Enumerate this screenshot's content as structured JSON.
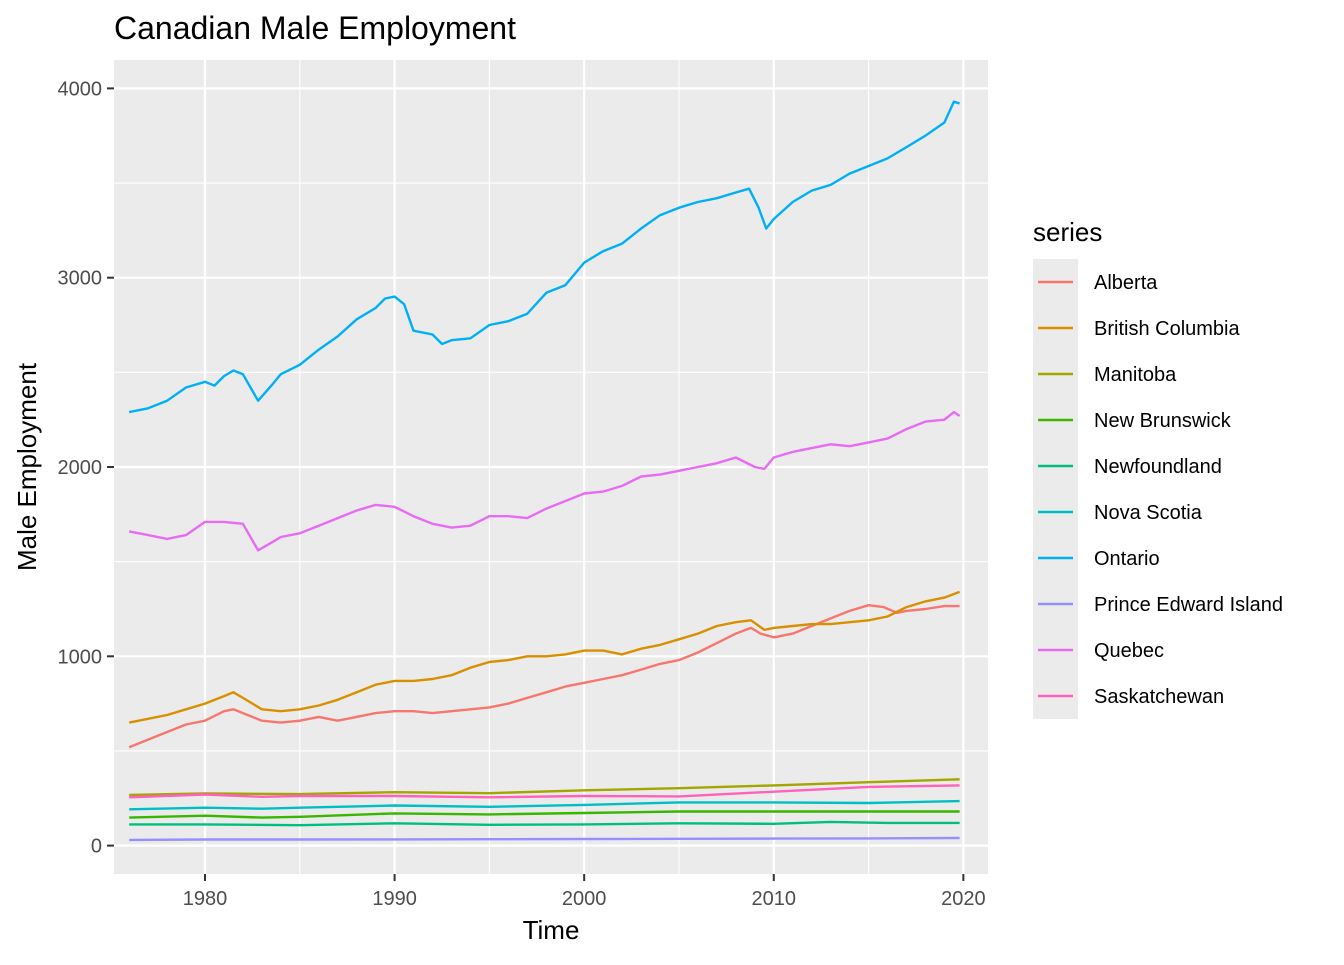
{
  "chart_data": {
    "type": "line",
    "title": "Canadian Male Employment",
    "xlabel": "Time",
    "ylabel": "Male Employment",
    "xlim": [
      1975.2,
      2021.3
    ],
    "ylim": [
      -150,
      4150
    ],
    "x_ticks": [
      1980,
      1990,
      2000,
      2010,
      2020
    ],
    "x_tick_labels": [
      "1980",
      "1990",
      "2000",
      "2010",
      "2020"
    ],
    "y_ticks": [
      0,
      1000,
      2000,
      3000,
      4000
    ],
    "y_tick_labels": [
      "0",
      "1000",
      "2000",
      "3000",
      "4000"
    ],
    "grid": true,
    "background": "#ebebeb",
    "legend": {
      "title": "series",
      "position": "right"
    },
    "series": [
      {
        "name": "Alberta",
        "color": "#F8766D",
        "points": [
          [
            1976,
            520
          ],
          [
            1977,
            560
          ],
          [
            1978,
            600
          ],
          [
            1979,
            640
          ],
          [
            1980,
            660
          ],
          [
            1981,
            710
          ],
          [
            1981.5,
            720
          ],
          [
            1982,
            700
          ],
          [
            1983,
            660
          ],
          [
            1984,
            650
          ],
          [
            1985,
            660
          ],
          [
            1986,
            680
          ],
          [
            1987,
            660
          ],
          [
            1988,
            680
          ],
          [
            1989,
            700
          ],
          [
            1990,
            710
          ],
          [
            1991,
            710
          ],
          [
            1992,
            700
          ],
          [
            1993,
            710
          ],
          [
            1994,
            720
          ],
          [
            1995,
            730
          ],
          [
            1996,
            750
          ],
          [
            1997,
            780
          ],
          [
            1998,
            810
          ],
          [
            1999,
            840
          ],
          [
            2000,
            860
          ],
          [
            2001,
            880
          ],
          [
            2002,
            900
          ],
          [
            2003,
            930
          ],
          [
            2004,
            960
          ],
          [
            2005,
            980
          ],
          [
            2006,
            1020
          ],
          [
            2007,
            1070
          ],
          [
            2008,
            1120
          ],
          [
            2008.8,
            1150
          ],
          [
            2009.3,
            1120
          ],
          [
            2010,
            1100
          ],
          [
            2011,
            1120
          ],
          [
            2012,
            1160
          ],
          [
            2013,
            1200
          ],
          [
            2014,
            1240
          ],
          [
            2015,
            1270
          ],
          [
            2015.8,
            1260
          ],
          [
            2016.5,
            1230
          ],
          [
            2017,
            1240
          ],
          [
            2018,
            1250
          ],
          [
            2019,
            1265
          ],
          [
            2019.8,
            1265
          ]
        ]
      },
      {
        "name": "British Columbia",
        "color": "#D89000",
        "points": [
          [
            1976,
            650
          ],
          [
            1977,
            670
          ],
          [
            1978,
            690
          ],
          [
            1979,
            720
          ],
          [
            1980,
            750
          ],
          [
            1981,
            790
          ],
          [
            1981.5,
            810
          ],
          [
            1982,
            780
          ],
          [
            1983,
            720
          ],
          [
            1984,
            710
          ],
          [
            1985,
            720
          ],
          [
            1986,
            740
          ],
          [
            1987,
            770
          ],
          [
            1988,
            810
          ],
          [
            1989,
            850
          ],
          [
            1990,
            870
          ],
          [
            1991,
            870
          ],
          [
            1992,
            880
          ],
          [
            1993,
            900
          ],
          [
            1994,
            940
          ],
          [
            1995,
            970
          ],
          [
            1996,
            980
          ],
          [
            1997,
            1000
          ],
          [
            1998,
            1000
          ],
          [
            1999,
            1010
          ],
          [
            2000,
            1030
          ],
          [
            2001,
            1030
          ],
          [
            2002,
            1010
          ],
          [
            2003,
            1040
          ],
          [
            2004,
            1060
          ],
          [
            2005,
            1090
          ],
          [
            2006,
            1120
          ],
          [
            2007,
            1160
          ],
          [
            2008,
            1180
          ],
          [
            2008.8,
            1190
          ],
          [
            2009.5,
            1140
          ],
          [
            2010,
            1150
          ],
          [
            2011,
            1160
          ],
          [
            2012,
            1170
          ],
          [
            2013,
            1170
          ],
          [
            2014,
            1180
          ],
          [
            2015,
            1190
          ],
          [
            2016,
            1210
          ],
          [
            2017,
            1260
          ],
          [
            2018,
            1290
          ],
          [
            2019,
            1310
          ],
          [
            2019.8,
            1340
          ]
        ]
      },
      {
        "name": "Manitoba",
        "color": "#A3A500",
        "points": [
          [
            1976,
            268
          ],
          [
            1980,
            275
          ],
          [
            1985,
            272
          ],
          [
            1990,
            282
          ],
          [
            1995,
            277
          ],
          [
            2000,
            292
          ],
          [
            2005,
            303
          ],
          [
            2010,
            318
          ],
          [
            2015,
            335
          ],
          [
            2019.8,
            350
          ]
        ]
      },
      {
        "name": "New Brunswick",
        "color": "#39B600",
        "points": [
          [
            1976,
            148
          ],
          [
            1980,
            158
          ],
          [
            1983,
            148
          ],
          [
            1985,
            152
          ],
          [
            1990,
            170
          ],
          [
            1995,
            165
          ],
          [
            2000,
            172
          ],
          [
            2005,
            180
          ],
          [
            2010,
            180
          ],
          [
            2015,
            180
          ],
          [
            2019.8,
            180
          ]
        ]
      },
      {
        "name": "Newfoundland",
        "color": "#00BF7D",
        "points": [
          [
            1976,
            112
          ],
          [
            1980,
            112
          ],
          [
            1985,
            108
          ],
          [
            1990,
            118
          ],
          [
            1995,
            110
          ],
          [
            2000,
            112
          ],
          [
            2005,
            118
          ],
          [
            2010,
            115
          ],
          [
            2013,
            125
          ],
          [
            2016,
            120
          ],
          [
            2019.8,
            120
          ]
        ]
      },
      {
        "name": "Nova Scotia",
        "color": "#00BFC4",
        "points": [
          [
            1976,
            192
          ],
          [
            1980,
            200
          ],
          [
            1983,
            195
          ],
          [
            1985,
            200
          ],
          [
            1990,
            212
          ],
          [
            1995,
            205
          ],
          [
            2000,
            215
          ],
          [
            2005,
            228
          ],
          [
            2010,
            228
          ],
          [
            2015,
            225
          ],
          [
            2019.8,
            235
          ]
        ]
      },
      {
        "name": "Ontario",
        "color": "#00B0F6",
        "points": [
          [
            1976,
            2290
          ],
          [
            1977,
            2310
          ],
          [
            1978,
            2350
          ],
          [
            1979,
            2420
          ],
          [
            1980,
            2450
          ],
          [
            1980.5,
            2430
          ],
          [
            1981,
            2480
          ],
          [
            1981.5,
            2510
          ],
          [
            1982,
            2490
          ],
          [
            1982.8,
            2350
          ],
          [
            1983.5,
            2430
          ],
          [
            1984,
            2490
          ],
          [
            1985,
            2540
          ],
          [
            1986,
            2620
          ],
          [
            1987,
            2690
          ],
          [
            1988,
            2780
          ],
          [
            1989,
            2840
          ],
          [
            1989.5,
            2890
          ],
          [
            1990,
            2900
          ],
          [
            1990.5,
            2860
          ],
          [
            1991,
            2720
          ],
          [
            1992,
            2700
          ],
          [
            1992.5,
            2650
          ],
          [
            1993,
            2670
          ],
          [
            1994,
            2680
          ],
          [
            1995,
            2750
          ],
          [
            1996,
            2770
          ],
          [
            1997,
            2810
          ],
          [
            1998,
            2920
          ],
          [
            1999,
            2960
          ],
          [
            2000,
            3080
          ],
          [
            2001,
            3140
          ],
          [
            2002,
            3180
          ],
          [
            2003,
            3260
          ],
          [
            2004,
            3330
          ],
          [
            2005,
            3370
          ],
          [
            2006,
            3400
          ],
          [
            2007,
            3420
          ],
          [
            2008,
            3450
          ],
          [
            2008.7,
            3470
          ],
          [
            2009.2,
            3370
          ],
          [
            2009.6,
            3260
          ],
          [
            2010,
            3310
          ],
          [
            2011,
            3400
          ],
          [
            2012,
            3460
          ],
          [
            2013,
            3490
          ],
          [
            2014,
            3550
          ],
          [
            2015,
            3590
          ],
          [
            2016,
            3630
          ],
          [
            2017,
            3690
          ],
          [
            2018,
            3750
          ],
          [
            2019,
            3820
          ],
          [
            2019.5,
            3930
          ],
          [
            2019.8,
            3920
          ]
        ]
      },
      {
        "name": "Prince Edward Island",
        "color": "#9590FF",
        "points": [
          [
            1976,
            30
          ],
          [
            1980,
            32
          ],
          [
            1985,
            32
          ],
          [
            1990,
            33
          ],
          [
            1995,
            34
          ],
          [
            2000,
            35
          ],
          [
            2005,
            36
          ],
          [
            2010,
            37
          ],
          [
            2015,
            38
          ],
          [
            2019.8,
            40
          ]
        ]
      },
      {
        "name": "Quebec",
        "color": "#E76BF3",
        "points": [
          [
            1976,
            1660
          ],
          [
            1977,
            1640
          ],
          [
            1978,
            1620
          ],
          [
            1979,
            1640
          ],
          [
            1980,
            1710
          ],
          [
            1981,
            1710
          ],
          [
            1982,
            1700
          ],
          [
            1982.8,
            1560
          ],
          [
            1983.5,
            1600
          ],
          [
            1984,
            1630
          ],
          [
            1985,
            1650
          ],
          [
            1986,
            1690
          ],
          [
            1987,
            1730
          ],
          [
            1988,
            1770
          ],
          [
            1989,
            1800
          ],
          [
            1990,
            1790
          ],
          [
            1991,
            1740
          ],
          [
            1992,
            1700
          ],
          [
            1993,
            1680
          ],
          [
            1994,
            1690
          ],
          [
            1995,
            1740
          ],
          [
            1996,
            1740
          ],
          [
            1997,
            1730
          ],
          [
            1998,
            1780
          ],
          [
            1999,
            1820
          ],
          [
            2000,
            1860
          ],
          [
            2001,
            1870
          ],
          [
            2002,
            1900
          ],
          [
            2003,
            1950
          ],
          [
            2004,
            1960
          ],
          [
            2005,
            1980
          ],
          [
            2006,
            2000
          ],
          [
            2007,
            2020
          ],
          [
            2008,
            2050
          ],
          [
            2009,
            2000
          ],
          [
            2009.5,
            1990
          ],
          [
            2010,
            2050
          ],
          [
            2011,
            2080
          ],
          [
            2012,
            2100
          ],
          [
            2013,
            2120
          ],
          [
            2014,
            2110
          ],
          [
            2015,
            2130
          ],
          [
            2016,
            2150
          ],
          [
            2017,
            2200
          ],
          [
            2018,
            2240
          ],
          [
            2019,
            2250
          ],
          [
            2019.5,
            2290
          ],
          [
            2019.8,
            2270
          ]
        ]
      },
      {
        "name": "Saskatchewan",
        "color": "#FF62BC",
        "points": [
          [
            1976,
            255
          ],
          [
            1980,
            270
          ],
          [
            1983,
            258
          ],
          [
            1985,
            262
          ],
          [
            1990,
            262
          ],
          [
            1995,
            255
          ],
          [
            2000,
            262
          ],
          [
            2005,
            260
          ],
          [
            2010,
            285
          ],
          [
            2015,
            310
          ],
          [
            2019.8,
            318
          ]
        ]
      }
    ]
  }
}
